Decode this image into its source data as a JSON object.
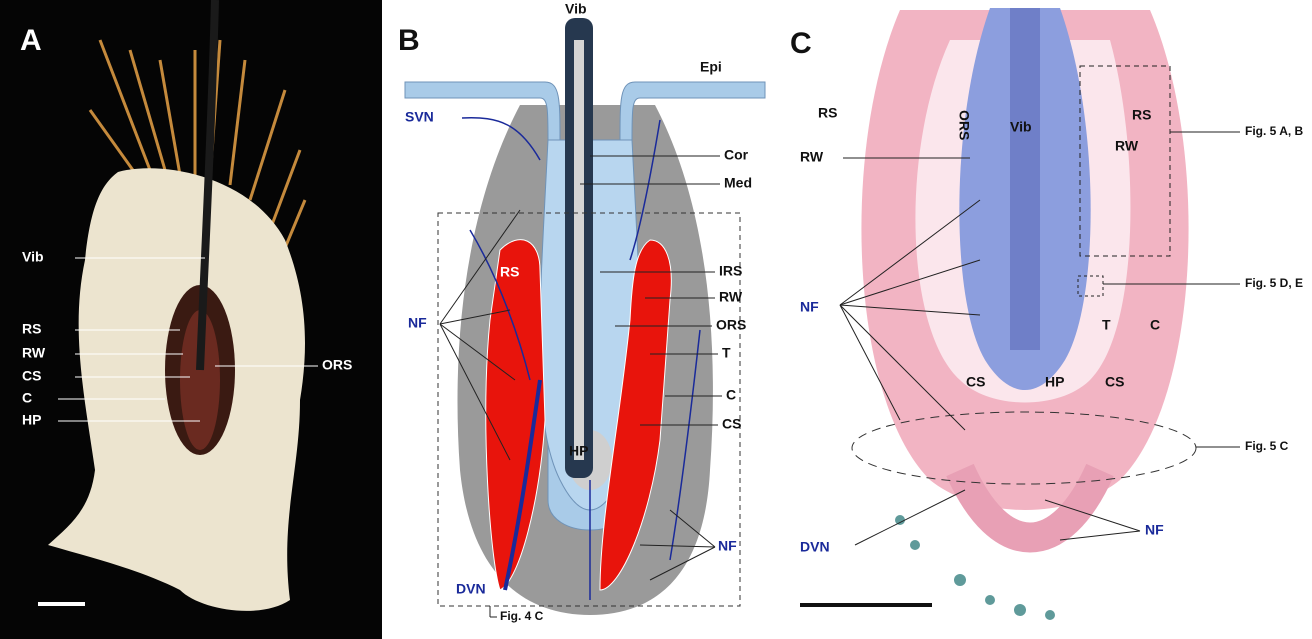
{
  "panels": [
    {
      "letter": "A",
      "labels": [
        "Vib",
        "RS",
        "RW",
        "CS",
        "C",
        "HP",
        "ORS"
      ]
    },
    {
      "letter": "B",
      "labels": [
        "Vib",
        "Epi",
        "SVN",
        "Cor",
        "Med",
        "NF",
        "RS",
        "IRS",
        "RW",
        "ORS",
        "T",
        "C",
        "CS",
        "HP",
        "NF",
        "DVN",
        "Fig. 4 C"
      ]
    },
    {
      "letter": "C",
      "labels": [
        "RS",
        "ORS",
        "Vib",
        "RS",
        "RW",
        "RW",
        "Fig. 5 A, B",
        "Fig. 5 D, E",
        "NF",
        "T",
        "C",
        "CS",
        "HP",
        "CS",
        "Fig. 5 C",
        "DVN",
        "NF"
      ]
    }
  ]
}
